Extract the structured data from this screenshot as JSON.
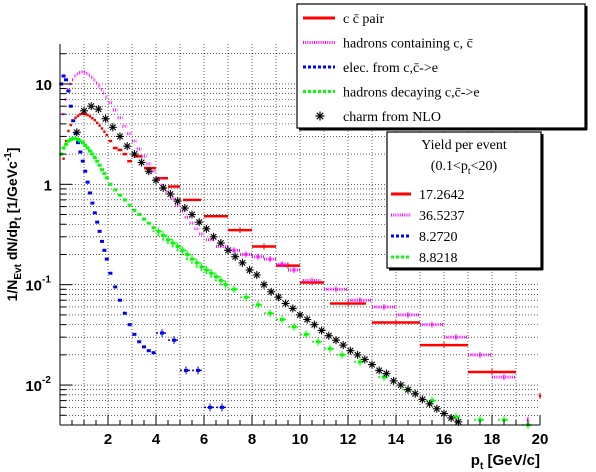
{
  "chart_data": {
    "type": "scatter",
    "title": "",
    "xlabel": "p_t [GeV/c]",
    "ylabel": "1/N_Evt dN/dp_t [1/GeVc^-1]",
    "xlim": [
      0,
      20
    ],
    "ylim": [
      0.004,
      25
    ],
    "yscale": "log",
    "grid": true,
    "x_ticks": [
      2,
      4,
      6,
      8,
      10,
      12,
      14,
      16,
      18,
      20
    ],
    "y_ticks": [
      {
        "value": 10,
        "base": "10",
        "exp": ""
      },
      {
        "value": 1,
        "base": "1",
        "exp": ""
      },
      {
        "value": 0.1,
        "base": "10",
        "exp": "-1"
      },
      {
        "value": 0.01,
        "base": "10",
        "exp": "-2"
      }
    ],
    "legend_position": "top-right",
    "legend": [
      {
        "label": "c c̄ pair",
        "color": "#ff0000",
        "style": "solid"
      },
      {
        "label": "hadrons containing c, c̄",
        "color": "#ff00ff",
        "style": "dotted"
      },
      {
        "label": "elec. from c,c̄->e",
        "color": "#0000ff",
        "style": "dashed"
      },
      {
        "label": "hadrons decaying c,c̄->e",
        "color": "#00ff00",
        "style": "dashed"
      },
      {
        "label": "charm from NLO",
        "color": "#000000",
        "style": "marker"
      }
    ],
    "yield_box": {
      "title_line1": "Yield per event",
      "title_line2": "(0.1<p_t<20)",
      "entries": [
        {
          "value": "17.2642",
          "color": "#ff0000",
          "style": "solid"
        },
        {
          "value": "36.5237",
          "color": "#ff00ff",
          "style": "dotted"
        },
        {
          "value": "8.2720",
          "color": "#0000ff",
          "style": "dashed"
        },
        {
          "value": "8.8218",
          "color": "#00ff00",
          "style": "dashed"
        }
      ]
    },
    "series": [
      {
        "name": "c c̄ pair",
        "color": "#ff0000",
        "style": "histogram",
        "points": [
          [
            0.15,
            1.8
          ],
          [
            0.25,
            2.7
          ],
          [
            0.35,
            3.4
          ],
          [
            0.45,
            3.9
          ],
          [
            0.55,
            4.3
          ],
          [
            0.65,
            4.6
          ],
          [
            0.75,
            4.8
          ],
          [
            0.85,
            5.0
          ],
          [
            0.95,
            5.05
          ],
          [
            1.05,
            5.0
          ],
          [
            1.15,
            4.9
          ],
          [
            1.25,
            4.75
          ],
          [
            1.35,
            4.55
          ],
          [
            1.45,
            4.35
          ],
          [
            1.55,
            4.1
          ],
          [
            1.65,
            3.85
          ],
          [
            1.75,
            3.6
          ],
          [
            1.85,
            3.35
          ],
          [
            1.95,
            3.1
          ],
          [
            2.1,
            2.7
          ],
          [
            2.3,
            2.3
          ],
          [
            2.5,
            2.2
          ],
          [
            2.7,
            2.0
          ],
          [
            2.9,
            1.7
          ],
          [
            3.25,
            1.9
          ],
          [
            3.75,
            1.45
          ],
          [
            4.25,
            1.15
          ],
          [
            4.75,
            0.95
          ],
          [
            5.5,
            0.7
          ],
          [
            6.5,
            0.48
          ],
          [
            7.5,
            0.35
          ],
          [
            8.5,
            0.24
          ],
          [
            9.5,
            0.155
          ],
          [
            10.5,
            0.105
          ],
          [
            12.0,
            0.065
          ],
          [
            14.0,
            0.042
          ],
          [
            16.0,
            0.025
          ],
          [
            18.0,
            0.0135
          ],
          [
            20.0,
            0.0078
          ]
        ]
      },
      {
        "name": "hadrons containing c, c̄",
        "color": "#ff00ff",
        "style": "histogram",
        "points": [
          [
            0.15,
            5.0
          ],
          [
            0.25,
            7.0
          ],
          [
            0.35,
            8.8
          ],
          [
            0.45,
            10.0
          ],
          [
            0.55,
            11.0
          ],
          [
            0.65,
            12.0
          ],
          [
            0.75,
            12.6
          ],
          [
            0.85,
            13.0
          ],
          [
            0.95,
            13.2
          ],
          [
            1.05,
            13.1
          ],
          [
            1.15,
            12.7
          ],
          [
            1.25,
            12.2
          ],
          [
            1.35,
            11.6
          ],
          [
            1.45,
            10.9
          ],
          [
            1.55,
            10.2
          ],
          [
            1.65,
            9.5
          ],
          [
            1.75,
            8.8
          ],
          [
            1.85,
            8.1
          ],
          [
            1.95,
            7.4
          ],
          [
            2.1,
            6.5
          ],
          [
            2.3,
            5.5
          ],
          [
            2.5,
            4.6
          ],
          [
            2.7,
            3.8
          ],
          [
            2.9,
            3.2
          ],
          [
            3.1,
            2.7
          ],
          [
            3.3,
            2.25
          ],
          [
            3.5,
            1.9
          ],
          [
            3.7,
            1.6
          ],
          [
            3.9,
            1.35
          ],
          [
            4.1,
            1.15
          ],
          [
            4.3,
            0.98
          ],
          [
            4.5,
            0.84
          ],
          [
            4.7,
            0.72
          ],
          [
            4.9,
            0.62
          ],
          [
            5.1,
            0.54
          ],
          [
            5.3,
            0.47
          ],
          [
            5.5,
            0.41
          ],
          [
            5.7,
            0.36
          ],
          [
            5.9,
            0.32
          ],
          [
            6.25,
            0.28
          ],
          [
            6.75,
            0.24
          ],
          [
            7.25,
            0.22
          ],
          [
            7.75,
            0.2
          ],
          [
            8.25,
            0.19
          ],
          [
            8.75,
            0.18
          ],
          [
            9.25,
            0.16
          ],
          [
            9.75,
            0.14
          ],
          [
            10.5,
            0.11
          ],
          [
            11.5,
            0.09
          ],
          [
            12.5,
            0.07
          ],
          [
            13.5,
            0.06
          ],
          [
            14.5,
            0.05
          ],
          [
            15.5,
            0.04
          ],
          [
            16.5,
            0.03
          ],
          [
            17.5,
            0.02
          ],
          [
            18.5,
            0.012
          ],
          [
            19.5,
            0.0045
          ]
        ]
      },
      {
        "name": "elec. from c,c̄->e",
        "color": "#0000ff",
        "style": "markers",
        "points": [
          [
            0.05,
            10.0
          ],
          [
            0.15,
            12.0
          ],
          [
            0.25,
            11.0
          ],
          [
            0.35,
            8.5
          ],
          [
            0.45,
            6.0
          ],
          [
            0.55,
            4.3
          ],
          [
            0.65,
            3.2
          ],
          [
            0.75,
            2.6
          ],
          [
            0.85,
            2.1
          ],
          [
            0.95,
            1.7
          ],
          [
            1.05,
            1.35
          ],
          [
            1.15,
            1.05
          ],
          [
            1.25,
            0.82
          ],
          [
            1.35,
            0.65
          ],
          [
            1.45,
            0.52
          ],
          [
            1.55,
            0.42
          ],
          [
            1.65,
            0.34
          ],
          [
            1.75,
            0.27
          ],
          [
            1.85,
            0.22
          ],
          [
            1.95,
            0.18
          ],
          [
            2.1,
            0.13
          ],
          [
            2.3,
            0.095
          ],
          [
            2.5,
            0.07
          ],
          [
            2.7,
            0.052
          ],
          [
            2.9,
            0.04
          ],
          [
            3.1,
            0.032
          ],
          [
            3.3,
            0.027
          ],
          [
            3.5,
            0.024
          ],
          [
            3.7,
            0.022
          ],
          [
            3.9,
            0.021
          ],
          [
            4.25,
            0.033
          ],
          [
            4.75,
            0.028
          ],
          [
            5.25,
            0.014
          ],
          [
            5.75,
            0.014
          ],
          [
            6.25,
            0.006
          ],
          [
            6.75,
            0.006
          ]
        ]
      },
      {
        "name": "hadrons decaying c,c̄->e",
        "color": "#00ff00",
        "style": "markers",
        "points": [
          [
            0.05,
            2.0
          ],
          [
            0.15,
            2.3
          ],
          [
            0.25,
            2.5
          ],
          [
            0.35,
            2.7
          ],
          [
            0.45,
            2.8
          ],
          [
            0.55,
            2.85
          ],
          [
            0.65,
            2.85
          ],
          [
            0.75,
            2.8
          ],
          [
            0.85,
            2.7
          ],
          [
            0.95,
            2.6
          ],
          [
            1.05,
            2.45
          ],
          [
            1.15,
            2.3
          ],
          [
            1.25,
            2.15
          ],
          [
            1.35,
            2.0
          ],
          [
            1.45,
            1.85
          ],
          [
            1.55,
            1.7
          ],
          [
            1.65,
            1.55
          ],
          [
            1.75,
            1.4
          ],
          [
            1.85,
            1.28
          ],
          [
            1.95,
            1.16
          ],
          [
            2.1,
            1.0
          ],
          [
            2.3,
            0.88
          ],
          [
            2.5,
            0.78
          ],
          [
            2.7,
            0.7
          ],
          [
            2.9,
            0.62
          ],
          [
            3.1,
            0.55
          ],
          [
            3.3,
            0.5
          ],
          [
            3.5,
            0.45
          ],
          [
            3.7,
            0.41
          ],
          [
            3.9,
            0.37
          ],
          [
            4.1,
            0.34
          ],
          [
            4.3,
            0.31
          ],
          [
            4.5,
            0.28
          ],
          [
            4.7,
            0.26
          ],
          [
            4.9,
            0.24
          ],
          [
            5.1,
            0.22
          ],
          [
            5.3,
            0.2
          ],
          [
            5.5,
            0.18
          ],
          [
            5.7,
            0.165
          ],
          [
            5.9,
            0.15
          ],
          [
            6.1,
            0.14
          ],
          [
            6.3,
            0.13
          ],
          [
            6.5,
            0.12
          ],
          [
            6.7,
            0.11
          ],
          [
            6.9,
            0.1
          ],
          [
            7.25,
            0.09
          ],
          [
            7.75,
            0.075
          ],
          [
            8.25,
            0.063
          ],
          [
            8.75,
            0.052
          ],
          [
            9.25,
            0.045
          ],
          [
            9.75,
            0.038
          ],
          [
            10.25,
            0.032
          ],
          [
            10.75,
            0.027
          ],
          [
            11.25,
            0.023
          ],
          [
            11.75,
            0.02
          ],
          [
            12.5,
            0.017
          ],
          [
            13.5,
            0.012
          ],
          [
            14.5,
            0.009
          ],
          [
            15.5,
            0.007
          ],
          [
            16.5,
            0.0048
          ],
          [
            17.5,
            0.0045
          ],
          [
            18.5,
            0.0045
          ],
          [
            19.5,
            0.004
          ]
        ]
      },
      {
        "name": "charm from NLO",
        "color": "#000000",
        "style": "stars",
        "points": [
          [
            0.7,
            3.3
          ],
          [
            1.0,
            5.4
          ],
          [
            1.3,
            6.0
          ],
          [
            1.6,
            5.6
          ],
          [
            1.9,
            4.5
          ],
          [
            2.2,
            3.7
          ],
          [
            2.5,
            3.0
          ],
          [
            2.8,
            2.4
          ],
          [
            3.1,
            2.0
          ],
          [
            3.4,
            1.65
          ],
          [
            3.7,
            1.35
          ],
          [
            4.0,
            1.1
          ],
          [
            4.3,
            0.92
          ],
          [
            4.6,
            0.8
          ],
          [
            4.9,
            0.68
          ],
          [
            5.2,
            0.58
          ],
          [
            5.5,
            0.5
          ],
          [
            5.8,
            0.42
          ],
          [
            6.1,
            0.36
          ],
          [
            6.4,
            0.3
          ],
          [
            6.7,
            0.26
          ],
          [
            7.0,
            0.22
          ],
          [
            7.3,
            0.19
          ],
          [
            7.6,
            0.165
          ],
          [
            7.9,
            0.14
          ],
          [
            8.2,
            0.125
          ],
          [
            8.5,
            0.1
          ],
          [
            8.8,
            0.085
          ],
          [
            9.1,
            0.075
          ],
          [
            9.4,
            0.065
          ],
          [
            9.7,
            0.058
          ],
          [
            10.0,
            0.05
          ],
          [
            10.3,
            0.045
          ],
          [
            10.6,
            0.04
          ],
          [
            10.9,
            0.035
          ],
          [
            11.2,
            0.031
          ],
          [
            11.5,
            0.028
          ],
          [
            11.8,
            0.025
          ],
          [
            12.1,
            0.022
          ],
          [
            12.4,
            0.02
          ],
          [
            12.7,
            0.018
          ],
          [
            13.0,
            0.016
          ],
          [
            13.3,
            0.014
          ],
          [
            13.6,
            0.013
          ],
          [
            13.9,
            0.011
          ],
          [
            14.2,
            0.01
          ],
          [
            14.5,
            0.009
          ],
          [
            14.8,
            0.0082
          ],
          [
            15.1,
            0.0072
          ],
          [
            15.4,
            0.0065
          ],
          [
            15.7,
            0.0058
          ],
          [
            16.0,
            0.0052
          ],
          [
            16.3,
            0.0047
          ],
          [
            16.6,
            0.0043
          ]
        ]
      }
    ]
  }
}
